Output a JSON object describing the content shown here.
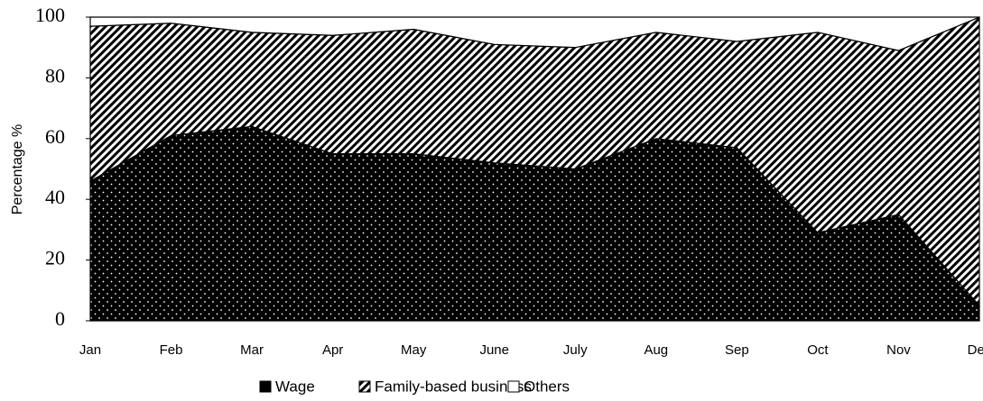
{
  "chart_data": {
    "type": "stacked-area",
    "y_label": "Percentage %",
    "categories": [
      "Jan",
      "Feb",
      "Mar",
      "Apr",
      "May",
      "June",
      "July",
      "Aug",
      "Sep",
      "Oct",
      "Nov",
      "Dec"
    ],
    "series": [
      {
        "name": "Wage",
        "color": "#000000",
        "values": [
          46,
          61,
          64,
          55,
          55,
          52,
          50,
          60,
          57,
          29,
          35,
          5
        ]
      },
      {
        "name": "Family-based business",
        "color": "#000000",
        "values": [
          51,
          37,
          31,
          39,
          41,
          39,
          40,
          35,
          35,
          66,
          54,
          95
        ]
      },
      {
        "name": "Others",
        "color": "#ffffff",
        "values": [
          3,
          2,
          5,
          6,
          4,
          9,
          10,
          5,
          8,
          5,
          11,
          0
        ]
      }
    ],
    "ylim": [
      0,
      100
    ],
    "yticks": [
      0,
      20,
      40,
      60,
      80,
      100
    ]
  }
}
